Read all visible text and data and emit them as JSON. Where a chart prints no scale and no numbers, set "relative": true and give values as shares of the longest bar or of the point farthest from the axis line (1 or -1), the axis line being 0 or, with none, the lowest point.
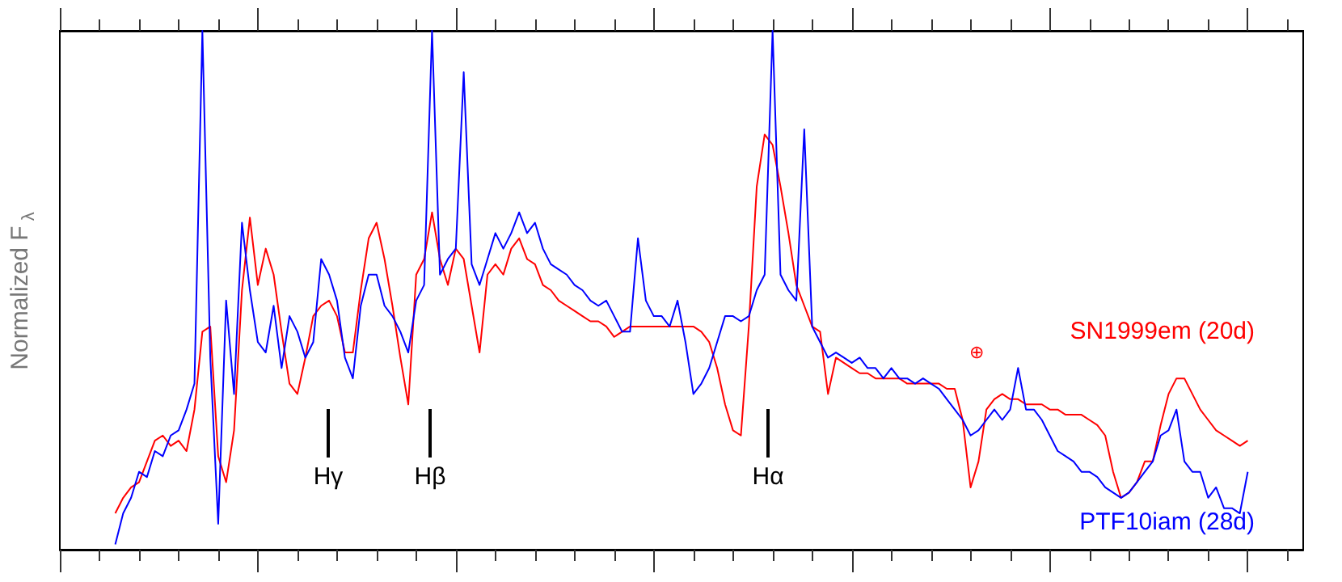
{
  "chart_data": {
    "type": "line",
    "relative": true,
    "ylabel": "Normalized F$_{λ}$",
    "grid": false,
    "annotations": [
      "Hγ",
      "Hβ",
      "Hα",
      "⊕"
    ],
    "categories": [
      null,
      null,
      null,
      null,
      null,
      null,
      null,
      null,
      null,
      null,
      null,
      null,
      null,
      null,
      null,
      null,
      null,
      null,
      null,
      null,
      null,
      null,
      null,
      null,
      null,
      null,
      null,
      null,
      null,
      null,
      null,
      null,
      null,
      null,
      null,
      null,
      null,
      null,
      null,
      null,
      null,
      null,
      null,
      null,
      null,
      null,
      null,
      null,
      null,
      null,
      null,
      null,
      null,
      null,
      null,
      null,
      null,
      null,
      null,
      null,
      null,
      null,
      null,
      null,
      null,
      null,
      null,
      null,
      null,
      null,
      null,
      null,
      null,
      null,
      null,
      null,
      null,
      null,
      null,
      null,
      null,
      null,
      null,
      null,
      null,
      null,
      null,
      null,
      null,
      null,
      null,
      null,
      null,
      null,
      null,
      null,
      null,
      null,
      null,
      null,
      null,
      null,
      null,
      null,
      null,
      null,
      null,
      null,
      null,
      null,
      null,
      null,
      null,
      null,
      null,
      null,
      null,
      null,
      null,
      null,
      null,
      null,
      null,
      null,
      null,
      null,
      null,
      null,
      null,
      null,
      null,
      null,
      null,
      null,
      null,
      null,
      null,
      null,
      null,
      null,
      null,
      null,
      null,
      null,
      null,
      null,
      null,
      null,
      null,
      null,
      null,
      null,
      null,
      null,
      null,
      null,
      null,
      null
    ],
    "series": [
      {
        "name": "SN1999em (20d)",
        "color": "#ff0000",
        "values": [
          null,
          null,
          null,
          null,
          null,
          null,
          null,
          0.07,
          0.1,
          0.12,
          0.13,
          0.17,
          0.21,
          0.22,
          0.2,
          0.21,
          0.19,
          0.27,
          0.42,
          0.43,
          0.18,
          0.13,
          0.23,
          0.5,
          0.64,
          0.51,
          0.58,
          0.53,
          0.42,
          0.32,
          0.3,
          0.37,
          0.45,
          0.47,
          0.48,
          0.45,
          0.38,
          0.38,
          0.5,
          0.6,
          0.63,
          0.56,
          0.47,
          0.37,
          0.28,
          0.53,
          0.56,
          0.65,
          0.56,
          0.51,
          0.58,
          0.56,
          0.47,
          0.38,
          0.53,
          0.55,
          0.53,
          0.58,
          0.6,
          0.56,
          0.55,
          0.51,
          0.5,
          0.48,
          0.47,
          0.46,
          0.45,
          0.44,
          0.44,
          0.43,
          0.41,
          0.42,
          0.43,
          0.43,
          0.43,
          0.43,
          0.43,
          0.43,
          0.43,
          0.43,
          0.43,
          0.42,
          0.4,
          0.35,
          0.28,
          0.23,
          0.22,
          0.43,
          0.7,
          0.8,
          0.78,
          0.7,
          0.61,
          0.51,
          0.47,
          0.43,
          0.42,
          0.3,
          0.37,
          0.36,
          0.35,
          0.34,
          0.34,
          0.33,
          0.33,
          0.33,
          0.33,
          0.32,
          0.32,
          0.32,
          0.32,
          0.32,
          0.31,
          0.31,
          0.25,
          0.12,
          0.17,
          0.27,
          0.29,
          0.3,
          0.29,
          0.29,
          0.28,
          0.28,
          0.28,
          0.27,
          0.27,
          0.26,
          0.26,
          0.26,
          0.25,
          0.24,
          0.22,
          0.15,
          0.1,
          0.11,
          0.13,
          0.17,
          0.17,
          0.24,
          0.3,
          0.33,
          0.33,
          0.3,
          0.27,
          0.25,
          0.23,
          0.22,
          0.21,
          0.2,
          0.21,
          null,
          null,
          null,
          null,
          null,
          null,
          null
        ]
      },
      {
        "name": "PTF10iam (28d)",
        "color": "#0000ff",
        "values": [
          null,
          null,
          null,
          null,
          null,
          null,
          null,
          0.01,
          0.07,
          0.1,
          0.15,
          0.14,
          0.19,
          0.18,
          0.22,
          0.23,
          0.27,
          0.32,
          1,
          0.37,
          0.05,
          0.48,
          0.3,
          0.63,
          0.5,
          0.4,
          0.38,
          0.47,
          0.35,
          0.45,
          0.42,
          0.37,
          0.4,
          0.56,
          0.53,
          0.48,
          0.37,
          0.33,
          0.47,
          0.53,
          0.53,
          0.47,
          0.45,
          0.42,
          0.38,
          0.48,
          0.51,
          1,
          0.53,
          0.56,
          0.58,
          0.92,
          0.55,
          0.51,
          0.56,
          0.61,
          0.58,
          0.61,
          0.65,
          0.61,
          0.63,
          0.58,
          0.55,
          0.54,
          0.53,
          0.51,
          0.5,
          0.48,
          0.47,
          0.48,
          0.45,
          0.42,
          0.42,
          0.6,
          0.48,
          0.45,
          0.45,
          0.43,
          0.48,
          0.4,
          0.3,
          0.32,
          0.35,
          0.4,
          0.45,
          0.45,
          0.44,
          0.45,
          0.5,
          0.53,
          1,
          0.53,
          0.5,
          0.48,
          0.81,
          0.43,
          0.4,
          0.37,
          0.38,
          0.37,
          0.36,
          0.37,
          0.35,
          0.35,
          0.33,
          0.35,
          0.33,
          0.33,
          0.32,
          0.33,
          0.32,
          0.31,
          0.29,
          0.27,
          0.25,
          0.22,
          0.23,
          0.25,
          0.27,
          0.25,
          0.27,
          0.35,
          0.27,
          0.27,
          0.25,
          0.22,
          0.19,
          0.18,
          0.17,
          0.15,
          0.15,
          0.14,
          0.12,
          0.11,
          0.1,
          0.11,
          0.13,
          0.15,
          0.17,
          0.22,
          0.23,
          0.27,
          0.17,
          0.15,
          0.15,
          0.1,
          0.12,
          0.08,
          0.08,
          0.07,
          0.15,
          null,
          null,
          null,
          null,
          null,
          null,
          null
        ]
      }
    ]
  }
}
